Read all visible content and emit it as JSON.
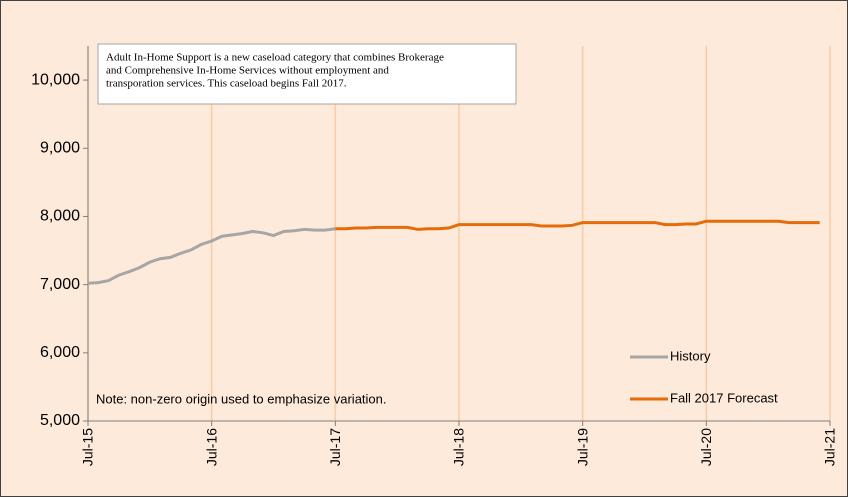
{
  "chart_data": {
    "type": "line",
    "annotation": [
      "Adult In-Home Support is a new caseload category that combines Brokerage",
      "and Comprehensive In-Home Services without employment and",
      "transporation services. This caseload begins Fall 2017."
    ],
    "note": "Note: non-zero origin used to emphasize variation.",
    "categories": [
      "Jul-15",
      null,
      null,
      null,
      null,
      null,
      null,
      null,
      null,
      null,
      null,
      null,
      "Jul-16",
      null,
      null,
      null,
      null,
      null,
      null,
      null,
      null,
      null,
      null,
      null,
      "Jul-17",
      null,
      null,
      null,
      null,
      null,
      null,
      null,
      null,
      null,
      null,
      null,
      "Jul-18",
      null,
      null,
      null,
      null,
      null,
      null,
      null,
      null,
      null,
      null,
      null,
      "Jul-19",
      null,
      null,
      null,
      null,
      null,
      null,
      null,
      null,
      null,
      null,
      null,
      "Jul-20",
      null,
      null,
      null,
      null,
      null,
      null,
      null,
      null,
      null,
      null,
      null,
      "Jul-21"
    ],
    "series": [
      {
        "name": "History",
        "color": "#a6a6a6",
        "values": [
          7020,
          7030,
          7060,
          7140,
          7190,
          7250,
          7330,
          7380,
          7400,
          7460,
          7510,
          7590,
          7640,
          7710,
          7730,
          7750,
          7780,
          7760,
          7720,
          7780,
          7790,
          7810,
          7800,
          7800,
          7820,
          null,
          null,
          null,
          null,
          null,
          null,
          null,
          null,
          null,
          null,
          null,
          null,
          null,
          null,
          null,
          null,
          null,
          null,
          null,
          null,
          null,
          null,
          null,
          null,
          null,
          null,
          null,
          null,
          null,
          null,
          null,
          null,
          null,
          null,
          null,
          null,
          null,
          null,
          null,
          null,
          null,
          null,
          null,
          null,
          null,
          null,
          null,
          null
        ]
      },
      {
        "name": "Fall 2017 Forecast",
        "color": "#e46c0a",
        "values": [
          null,
          null,
          null,
          null,
          null,
          null,
          null,
          null,
          null,
          null,
          null,
          null,
          null,
          null,
          null,
          null,
          null,
          null,
          null,
          null,
          null,
          null,
          null,
          null,
          7820,
          7820,
          7830,
          7830,
          7840,
          7840,
          7840,
          7840,
          7810,
          7820,
          7820,
          7830,
          7880,
          7880,
          7880,
          7880,
          7880,
          7880,
          7880,
          7880,
          7860,
          7860,
          7860,
          7870,
          7910,
          7910,
          7910,
          7910,
          7910,
          7910,
          7910,
          7910,
          7880,
          7880,
          7890,
          7890,
          7930,
          7930,
          7930,
          7930,
          7930,
          7930,
          7930,
          7930,
          7910,
          7910,
          7910,
          7910,
          null
        ]
      }
    ],
    "ylim": [
      5000,
      10500
    ],
    "yticks": [
      {
        "value": 5000,
        "label": "5,000"
      },
      {
        "value": 6000,
        "label": "6,000"
      },
      {
        "value": 7000,
        "label": "7,000"
      },
      {
        "value": 8000,
        "label": "8,000"
      },
      {
        "value": 9000,
        "label": "9,000"
      },
      {
        "value": 10000,
        "label": "10,000"
      }
    ],
    "grid": true,
    "legend": "lower right"
  }
}
